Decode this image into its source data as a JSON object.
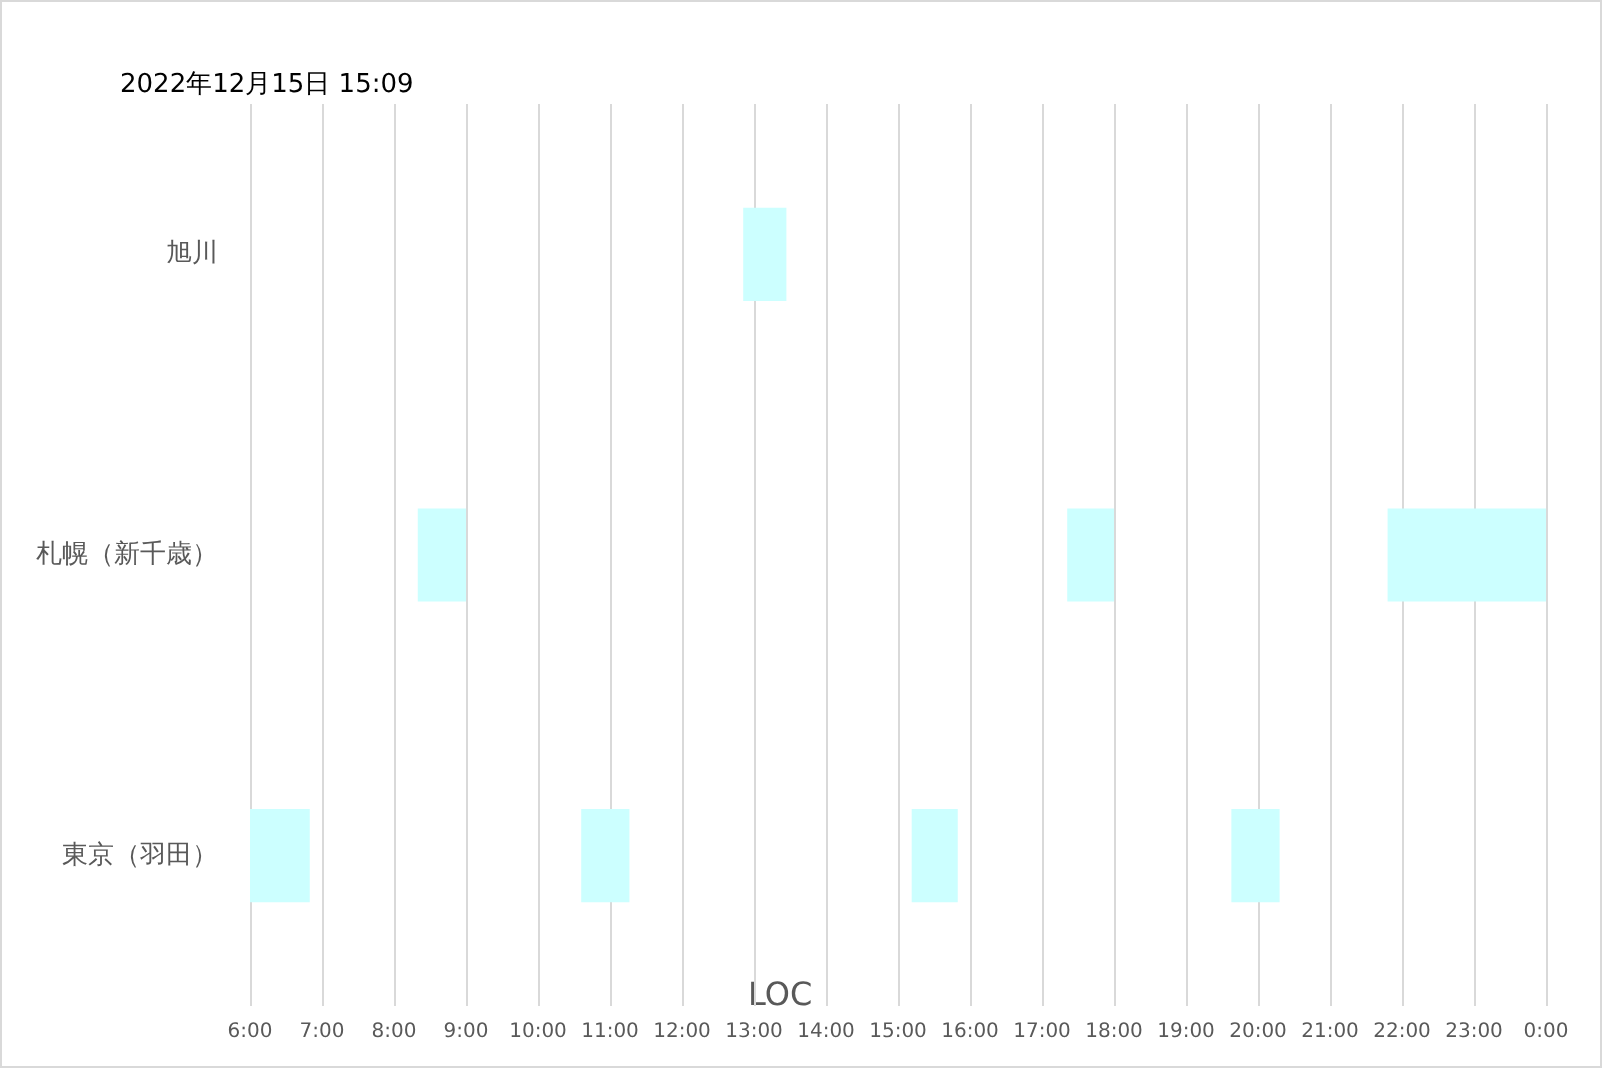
{
  "chart_data": {
    "type": "bar",
    "orientation": "horizontal",
    "title": "2022年12月15日 15:09",
    "xlabel": "LOC",
    "categories": [
      "旭川",
      "札幌（新千歳）",
      "東京（羽田）"
    ],
    "series": [
      {
        "color": "#ccffff",
        "base": [
          12.85,
          8.33,
          6.0
        ],
        "values": [
          0.6,
          0.67,
          0.83
        ]
      },
      {
        "color": "#ccffff",
        "base": [
          null,
          17.35,
          10.6
        ],
        "values": [
          null,
          0.65,
          0.67
        ]
      },
      {
        "color": "#ccffff",
        "base": [
          null,
          21.8,
          15.19
        ],
        "values": [
          null,
          2.2,
          0.64
        ]
      },
      {
        "color": "#ccffff",
        "base": [
          null,
          null,
          19.63
        ],
        "values": [
          null,
          null,
          0.67
        ]
      }
    ],
    "xlim": [
      6,
      24
    ],
    "xticks": [
      {
        "value": 6,
        "label": "6:00"
      },
      {
        "value": 7,
        "label": "7:00"
      },
      {
        "value": 8,
        "label": "8:00"
      },
      {
        "value": 9,
        "label": "9:00"
      },
      {
        "value": 10,
        "label": "10:00"
      },
      {
        "value": 11,
        "label": "11:00"
      },
      {
        "value": 12,
        "label": "12:00"
      },
      {
        "value": 13,
        "label": "13:00"
      },
      {
        "value": 14,
        "label": "14:00"
      },
      {
        "value": 15,
        "label": "15:00"
      },
      {
        "value": 16,
        "label": "16:00"
      },
      {
        "value": 17,
        "label": "17:00"
      },
      {
        "value": 18,
        "label": "18:00"
      },
      {
        "value": 19,
        "label": "19:00"
      },
      {
        "value": 20,
        "label": "20:00"
      },
      {
        "value": 21,
        "label": "21:00"
      },
      {
        "value": 22,
        "label": "22:00"
      },
      {
        "value": 23,
        "label": "23:00"
      },
      {
        "value": 24,
        "label": "0:00"
      }
    ],
    "grid": "x"
  }
}
